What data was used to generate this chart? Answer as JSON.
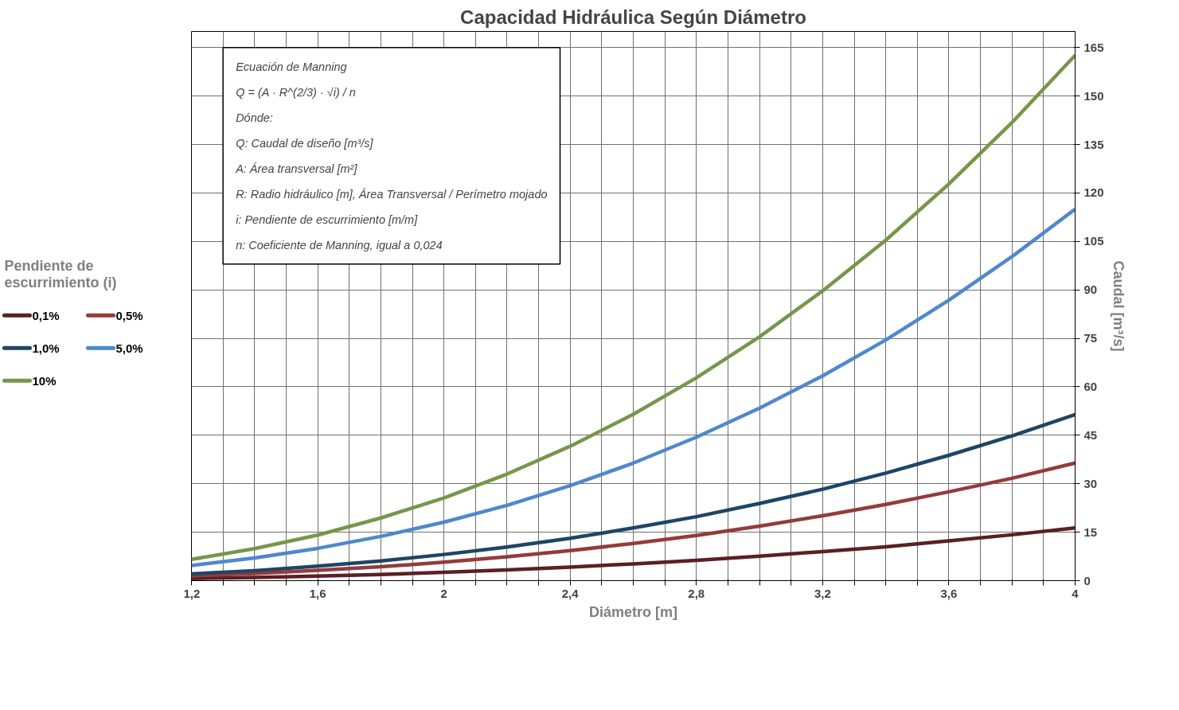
{
  "chart_data": {
    "type": "line",
    "title": "Capacidad Hidráulica Según Diámetro",
    "xlabel": "Diámetro [m]",
    "ylabel": "Caudal [m³/s]",
    "legend_title": "Pendiente de escurrimiento (i)",
    "legend": "left",
    "grid": true,
    "marker": "none",
    "line_style": "solid",
    "x": [
      1.2,
      1.4,
      1.6,
      1.8,
      2.0,
      2.2,
      2.4,
      2.6,
      2.8,
      3.0,
      3.2,
      3.4,
      3.6,
      3.8,
      4.0
    ],
    "series": [
      {
        "name": "0,1%",
        "color": "#5b1f24",
        "values": [
          0.7,
          1.0,
          1.4,
          1.9,
          2.6,
          3.3,
          4.2,
          5.2,
          6.3,
          7.6,
          9.0,
          10.5,
          12.3,
          14.2,
          16.3
        ]
      },
      {
        "name": "0,5%",
        "color": "#943b3b",
        "values": [
          1.5,
          2.2,
          3.2,
          4.3,
          5.7,
          7.4,
          9.3,
          11.5,
          14.0,
          16.9,
          20.1,
          23.6,
          27.5,
          31.7,
          36.4
        ]
      },
      {
        "name": "1,0%",
        "color": "#1f4566",
        "values": [
          2.1,
          3.1,
          4.5,
          6.1,
          8.1,
          10.4,
          13.1,
          16.3,
          19.8,
          23.9,
          28.3,
          33.3,
          38.8,
          44.8,
          51.4
        ]
      },
      {
        "name": "5,0%",
        "color": "#4f88cc",
        "values": [
          4.7,
          7.0,
          10.0,
          13.7,
          18.1,
          23.3,
          29.4,
          36.4,
          44.4,
          53.4,
          63.4,
          74.5,
          86.8,
          100.3,
          115.0
        ]
      },
      {
        "name": "10%",
        "color": "#77964a",
        "values": [
          6.6,
          9.9,
          14.1,
          19.4,
          25.6,
          33.0,
          41.6,
          51.5,
          62.8,
          75.5,
          89.7,
          105.4,
          122.8,
          141.8,
          162.6
        ]
      }
    ],
    "xlim": [
      1.2,
      4.0
    ],
    "ylim": [
      0,
      170
    ],
    "xticks": [
      {
        "value": 1.2,
        "label": "1,2"
      },
      {
        "value": 1.3,
        "label": null
      },
      {
        "value": 1.4,
        "label": null
      },
      {
        "value": 1.5,
        "label": null
      },
      {
        "value": 1.6,
        "label": "1,6"
      },
      {
        "value": 1.7,
        "label": null
      },
      {
        "value": 1.8,
        "label": null
      },
      {
        "value": 1.9,
        "label": null
      },
      {
        "value": 2.0,
        "label": "2"
      },
      {
        "value": 2.1,
        "label": null
      },
      {
        "value": 2.2,
        "label": null
      },
      {
        "value": 2.3,
        "label": null
      },
      {
        "value": 2.4,
        "label": "2,4"
      },
      {
        "value": 2.5,
        "label": null
      },
      {
        "value": 2.6,
        "label": null
      },
      {
        "value": 2.7,
        "label": null
      },
      {
        "value": 2.8,
        "label": "2,8"
      },
      {
        "value": 2.9,
        "label": null
      },
      {
        "value": 3.0,
        "label": null
      },
      {
        "value": 3.1,
        "label": null
      },
      {
        "value": 3.2,
        "label": "3,2"
      },
      {
        "value": 3.3,
        "label": null
      },
      {
        "value": 3.4,
        "label": null
      },
      {
        "value": 3.5,
        "label": null
      },
      {
        "value": 3.6,
        "label": "3,6"
      },
      {
        "value": 3.7,
        "label": null
      },
      {
        "value": 3.8,
        "label": null
      },
      {
        "value": 3.9,
        "label": null
      },
      {
        "value": 4.0,
        "label": "4"
      }
    ],
    "yticks": [
      0,
      15,
      30,
      45,
      60,
      75,
      90,
      105,
      120,
      135,
      150,
      165
    ],
    "annotations": [
      "Ecuación de Manning",
      "Q = (A · R^(2/3) · √i) / n",
      "Dónde:",
      "Q: Caudal de diseño [m³/s]",
      "A: Área transversal [m²]",
      "R: Radio hidráulico [m], Área Transversal / Perímetro mojado",
      "i: Pendiente de escurrimiento [m/m]",
      "n: Coeficiente de Manning, igual a 0,024"
    ]
  }
}
